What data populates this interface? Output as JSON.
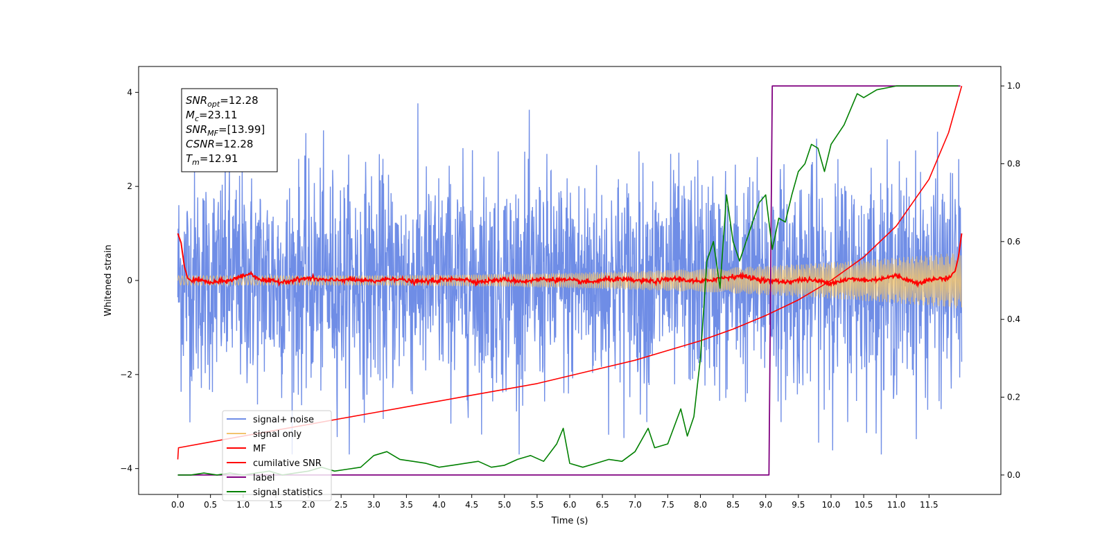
{
  "chart_data": {
    "type": "line",
    "xlabel": "Time (s)",
    "ylabel": "Whitened strain",
    "xlim": [
      -0.6,
      12.6
    ],
    "ylim": [
      -4.55,
      4.55
    ],
    "y2lim": [
      -0.05,
      1.05
    ],
    "x_ticks": [
      0.0,
      0.5,
      1.0,
      1.5,
      2.0,
      2.5,
      3.0,
      3.5,
      4.0,
      4.5,
      5.0,
      5.5,
      6.0,
      6.5,
      7.0,
      7.5,
      8.0,
      8.5,
      9.0,
      9.5,
      10.0,
      10.5,
      11.0,
      11.5
    ],
    "x_tick_labels": [
      "0.0",
      "0.5",
      "1.0",
      "1.5",
      "2.0",
      "2.5",
      "3.0",
      "3.5",
      "4.0",
      "4.5",
      "5.0",
      "5.5",
      "6.0",
      "6.5",
      "7.0",
      "7.5",
      "8.0",
      "8.5",
      "9.0",
      "9.5",
      "10.0",
      "10.5",
      "11.0",
      "11.5"
    ],
    "y_ticks": [
      -4,
      -2,
      0,
      2,
      4
    ],
    "y_tick_labels": [
      "−4",
      "−2",
      "0",
      "2",
      "4"
    ],
    "y2_ticks": [
      0.0,
      0.2,
      0.4,
      0.6,
      0.8,
      1.0
    ],
    "y2_tick_labels": [
      "0.0",
      "0.2",
      "0.4",
      "0.6",
      "0.8",
      "1.0"
    ],
    "grid": false,
    "legend_position": "lower-left",
    "annotation": {
      "lines": [
        {
          "sym": "SNR",
          "sub": "opt",
          "val": "=12.28"
        },
        {
          "sym": "M",
          "sub": "c",
          "val": "=23.11"
        },
        {
          "sym": "SNR",
          "sub": "MF",
          "val": "=[13.99]"
        },
        {
          "sym": "CSNR",
          "sub": "",
          "val": "=12.28"
        },
        {
          "sym": "T",
          "sub": "m",
          "val": "=12.91"
        }
      ]
    },
    "series": [
      {
        "name": "signal+ noise",
        "axis": "left",
        "color": "#6f8de6",
        "description_kind": "noisy oscillation",
        "x_range": [
          0.0,
          12.0
        ],
        "envelope": [
          -3.7,
          4.1
        ]
      },
      {
        "name": "signal only",
        "axis": "left",
        "color": "#f2c46d",
        "description_kind": "chirp",
        "x_range": [
          0.0,
          12.0
        ],
        "amplitude_start": 0.1,
        "amplitude_end": 0.6
      },
      {
        "name": "MF",
        "axis": "left",
        "color": "#ff0000",
        "x": [
          0.0,
          0.05,
          0.1,
          0.15,
          0.2,
          0.3,
          0.5,
          0.8,
          1.0,
          1.1,
          1.3,
          1.6,
          2.0,
          2.3,
          2.6,
          3.0,
          3.3,
          3.6,
          4.0,
          4.3,
          4.6,
          5.0,
          5.3,
          5.6,
          6.0,
          6.3,
          6.6,
          7.0,
          7.3,
          7.6,
          8.0,
          8.3,
          8.6,
          9.0,
          9.3,
          9.6,
          10.0,
          10.3,
          10.6,
          11.0,
          11.3,
          11.6,
          11.8,
          11.9,
          11.95,
          12.0
        ],
        "y": [
          1.0,
          0.8,
          0.3,
          0.05,
          0.0,
          0.02,
          -0.05,
          0.0,
          0.1,
          0.15,
          0.0,
          -0.03,
          0.05,
          0.0,
          0.02,
          -0.02,
          0.05,
          -0.03,
          0.0,
          0.04,
          -0.03,
          0.02,
          -0.02,
          0.03,
          0.0,
          -0.04,
          0.03,
          0.0,
          -0.02,
          0.04,
          -0.03,
          0.05,
          0.1,
          0.0,
          -0.03,
          0.02,
          -0.05,
          0.03,
          0.0,
          0.1,
          -0.05,
          0.03,
          0.05,
          0.2,
          0.5,
          1.0
        ]
      },
      {
        "name": "cumilative SNR",
        "axis": "right",
        "color": "#ff0000",
        "x": [
          0.0,
          0.01,
          0.5,
          1.0,
          1.5,
          2.0,
          2.5,
          3.0,
          3.5,
          4.0,
          4.5,
          5.0,
          5.5,
          6.0,
          6.5,
          7.0,
          7.5,
          8.0,
          8.5,
          9.0,
          9.5,
          10.0,
          10.5,
          11.0,
          11.5,
          11.8,
          12.0
        ],
        "y": [
          0.04,
          0.07,
          0.085,
          0.1,
          0.115,
          0.13,
          0.145,
          0.16,
          0.175,
          0.19,
          0.205,
          0.22,
          0.235,
          0.255,
          0.275,
          0.295,
          0.32,
          0.345,
          0.375,
          0.41,
          0.45,
          0.5,
          0.56,
          0.64,
          0.76,
          0.88,
          1.0
        ]
      },
      {
        "name": "label",
        "axis": "right",
        "color": "#800080",
        "x": [
          0.0,
          9.05,
          9.1,
          11.98
        ],
        "y": [
          0.0,
          0.0,
          1.0,
          1.0
        ]
      },
      {
        "name": "signal statistics",
        "axis": "right",
        "color": "#008000",
        "x": [
          0.0,
          0.2,
          0.4,
          0.6,
          0.8,
          1.0,
          1.2,
          1.4,
          1.6,
          1.8,
          2.0,
          2.2,
          2.4,
          2.6,
          2.8,
          3.0,
          3.2,
          3.4,
          3.6,
          3.8,
          4.0,
          4.2,
          4.4,
          4.6,
          4.8,
          5.0,
          5.2,
          5.4,
          5.6,
          5.8,
          5.9,
          6.0,
          6.2,
          6.4,
          6.6,
          6.8,
          7.0,
          7.2,
          7.3,
          7.5,
          7.7,
          7.8,
          7.9,
          8.0,
          8.1,
          8.2,
          8.3,
          8.4,
          8.5,
          8.6,
          8.7,
          8.8,
          8.9,
          9.0,
          9.1,
          9.2,
          9.3,
          9.4,
          9.5,
          9.6,
          9.7,
          9.8,
          9.9,
          10.0,
          10.2,
          10.4,
          10.5,
          10.7,
          11.0,
          11.3,
          11.6,
          11.95
        ],
        "y": [
          0.0,
          0.0,
          0.005,
          0.0,
          0.005,
          0.0,
          0.005,
          0.01,
          0.0,
          0.005,
          0.01,
          0.02,
          0.01,
          0.015,
          0.02,
          0.05,
          0.06,
          0.04,
          0.035,
          0.03,
          0.02,
          0.025,
          0.03,
          0.035,
          0.02,
          0.025,
          0.04,
          0.05,
          0.035,
          0.08,
          0.12,
          0.03,
          0.02,
          0.03,
          0.04,
          0.035,
          0.06,
          0.12,
          0.07,
          0.08,
          0.17,
          0.1,
          0.15,
          0.3,
          0.55,
          0.6,
          0.48,
          0.72,
          0.6,
          0.55,
          0.6,
          0.65,
          0.7,
          0.72,
          0.58,
          0.66,
          0.65,
          0.72,
          0.78,
          0.8,
          0.85,
          0.84,
          0.78,
          0.85,
          0.9,
          0.98,
          0.97,
          0.99,
          1.0,
          1.0,
          1.0,
          1.0
        ]
      }
    ]
  }
}
